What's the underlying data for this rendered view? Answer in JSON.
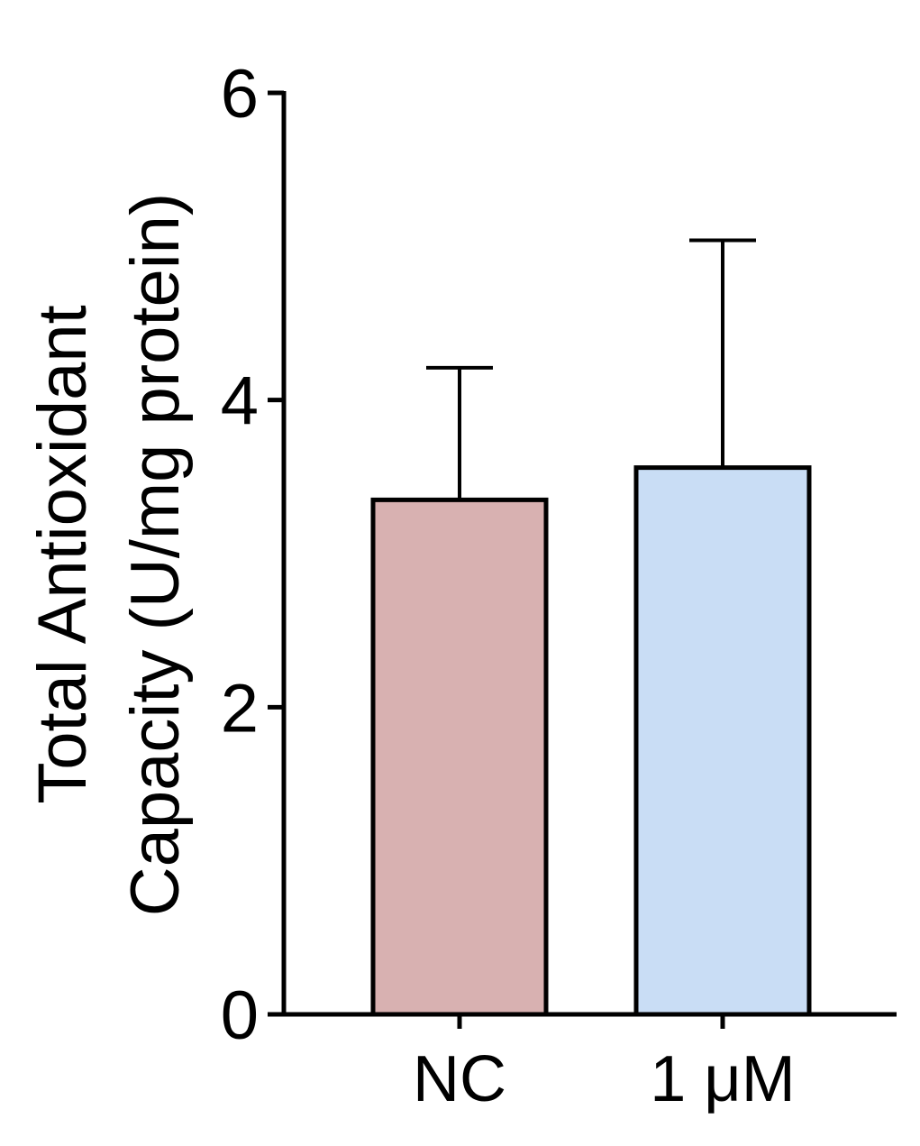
{
  "chart_data": {
    "type": "bar",
    "ylabel": [
      "Total Antioxidant",
      "Capacity (U/mg protein)"
    ],
    "categories": [
      "NC",
      "1 μM"
    ],
    "values": [
      3.35,
      3.56
    ],
    "errors": [
      0.86,
      1.48
    ],
    "colors": [
      "#d8b1b1",
      "#c9ddf5"
    ],
    "ylim": [
      0,
      6
    ],
    "yticks": [
      0,
      2,
      4,
      6
    ]
  }
}
